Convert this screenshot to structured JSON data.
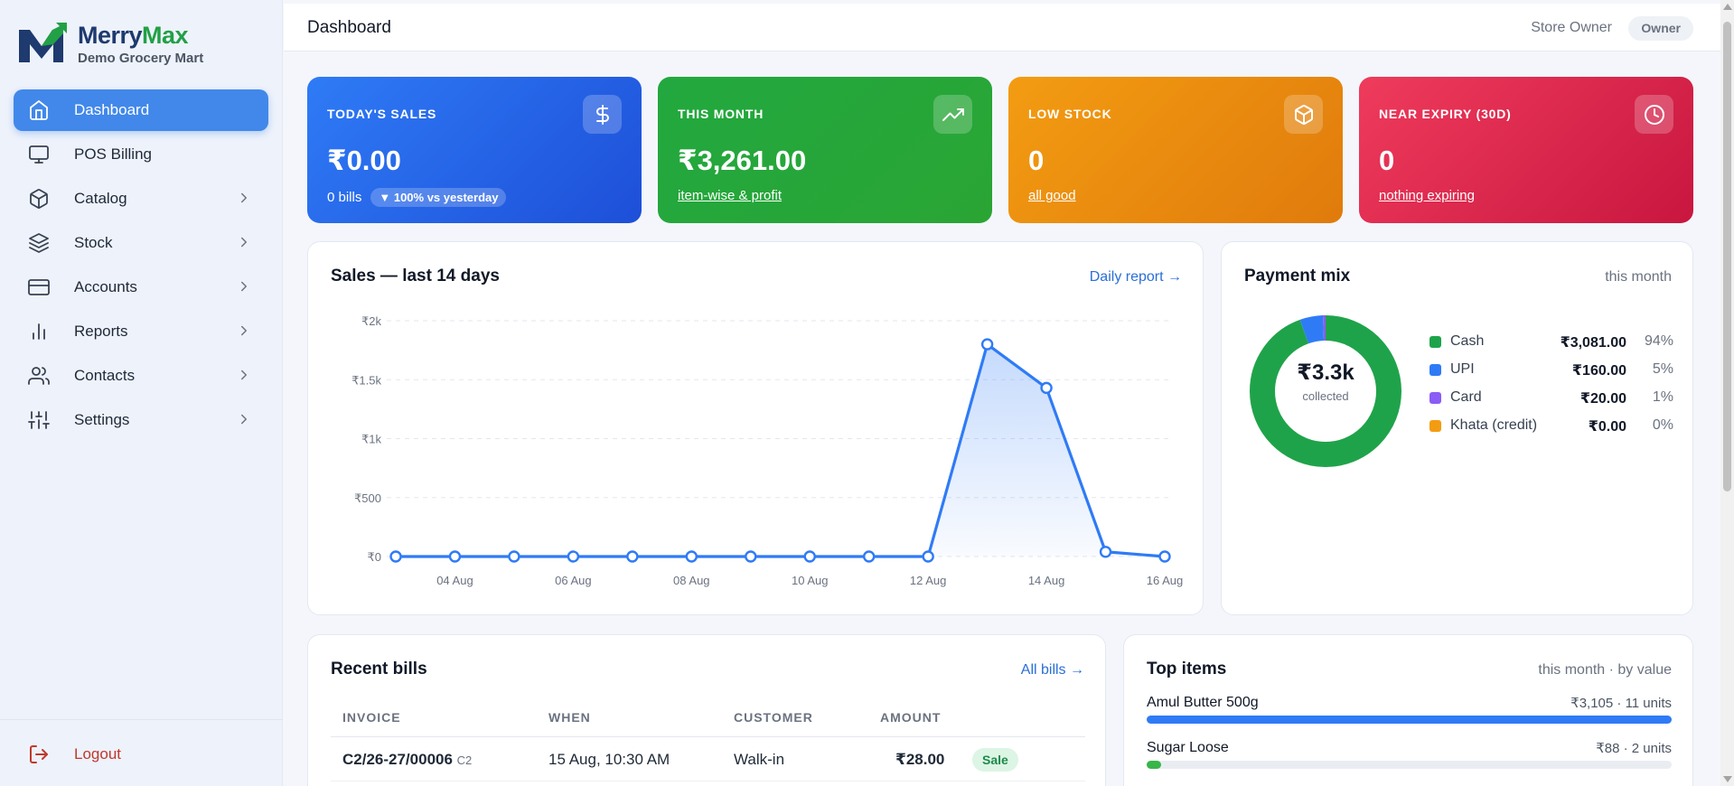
{
  "brand": {
    "name_a": "Merry",
    "name_b": "Max",
    "subtitle": "Demo Grocery Mart"
  },
  "sidebar": {
    "items": [
      {
        "label": "Dashboard",
        "icon": "home-icon",
        "active": true,
        "chevron": false
      },
      {
        "label": "POS Billing",
        "icon": "monitor-icon",
        "active": false,
        "chevron": false
      },
      {
        "label": "Catalog",
        "icon": "box-icon",
        "active": false,
        "chevron": true
      },
      {
        "label": "Stock",
        "icon": "layers-icon",
        "active": false,
        "chevron": true
      },
      {
        "label": "Accounts",
        "icon": "credit-card-icon",
        "active": false,
        "chevron": true
      },
      {
        "label": "Reports",
        "icon": "bar-chart-icon",
        "active": false,
        "chevron": true
      },
      {
        "label": "Contacts",
        "icon": "users-icon",
        "active": false,
        "chevron": true
      },
      {
        "label": "Settings",
        "icon": "sliders-icon",
        "active": false,
        "chevron": true
      }
    ],
    "logout": "Logout"
  },
  "header": {
    "title": "Dashboard",
    "user": "Store Owner",
    "role": "Owner"
  },
  "stats": {
    "today": {
      "label": "TODAY'S SALES",
      "value": "₹0.00",
      "bills": "0 bills",
      "change": "▼ 100% vs yesterday",
      "icon": "rupee-icon",
      "color_a": "#2f7bf6",
      "color_b": "#1d4fd8"
    },
    "month": {
      "label": "THIS MONTH",
      "value": "₹3,261.00",
      "link": "item-wise & profit",
      "icon": "trending-up-icon",
      "color_a": "#22a83f",
      "color_b": "#2aa534"
    },
    "low": {
      "label": "LOW STOCK",
      "value": "0",
      "link": "all good",
      "icon": "cube-icon",
      "color_a": "#f39c12",
      "color_b": "#e07b0c"
    },
    "expiry": {
      "label": "NEAR EXPIRY (30D)",
      "value": "0",
      "link": "nothing expiring",
      "icon": "clock-icon",
      "color_a": "#ef3b5c",
      "color_b": "#c8163f"
    }
  },
  "sales_panel": {
    "title": "Sales — last 14 days",
    "link": "Daily report →"
  },
  "chart_data": {
    "type": "area",
    "title": "Sales — last 14 days",
    "x": [
      "03 Aug",
      "04 Aug",
      "05 Aug",
      "06 Aug",
      "07 Aug",
      "08 Aug",
      "09 Aug",
      "10 Aug",
      "11 Aug",
      "12 Aug",
      "13 Aug",
      "14 Aug",
      "15 Aug",
      "16 Aug"
    ],
    "x_tick_labels": [
      "04 Aug",
      "06 Aug",
      "08 Aug",
      "10 Aug",
      "12 Aug",
      "14 Aug",
      "16 Aug"
    ],
    "values": [
      0,
      0,
      0,
      0,
      0,
      0,
      0,
      0,
      0,
      0,
      1800,
      1430,
      40,
      0
    ],
    "y_ticks": [
      0,
      500,
      1000,
      1500,
      2000
    ],
    "y_tick_labels": [
      "₹0",
      "₹500",
      "₹1k",
      "₹1.5k",
      "₹2k"
    ],
    "ylim": [
      0,
      2000
    ],
    "grid": true,
    "color": "#2f7bf6"
  },
  "payment_panel": {
    "title": "Payment mix",
    "meta": "this month",
    "center_value": "₹3.3k",
    "center_label": "collected",
    "slices": [
      {
        "name": "Cash",
        "amount": "₹3,081.00",
        "pct": "94%",
        "value": 3081,
        "color": "#1fa34a"
      },
      {
        "name": "UPI",
        "amount": "₹160.00",
        "pct": "5%",
        "value": 160,
        "color": "#2f7bf6"
      },
      {
        "name": "Card",
        "amount": "₹20.00",
        "pct": "1%",
        "value": 20,
        "color": "#8b5cf6"
      },
      {
        "name": "Khata (credit)",
        "amount": "₹0.00",
        "pct": "0%",
        "value": 0,
        "color": "#f39c12"
      }
    ]
  },
  "bills_panel": {
    "title": "Recent bills",
    "link": "All bills →",
    "columns": [
      "INVOICE",
      "WHEN",
      "CUSTOMER",
      "AMOUNT"
    ],
    "rows": [
      {
        "invoice": "C2/26-27/00006",
        "counter": "C2",
        "when": "15 Aug, 10:30 AM",
        "customer": "Walk-in",
        "amount": "₹28.00",
        "type": "Sale"
      }
    ]
  },
  "top_items_panel": {
    "title": "Top items",
    "meta": "this month · by value",
    "items": [
      {
        "name": "Amul Butter 500g",
        "value": "₹3,105 · 11 units",
        "share": 1.0,
        "color": "#2f7bf6"
      },
      {
        "name": "Sugar Loose",
        "value": "₹88 · 2 units",
        "share": 0.028,
        "color": "#39b54a"
      }
    ]
  }
}
